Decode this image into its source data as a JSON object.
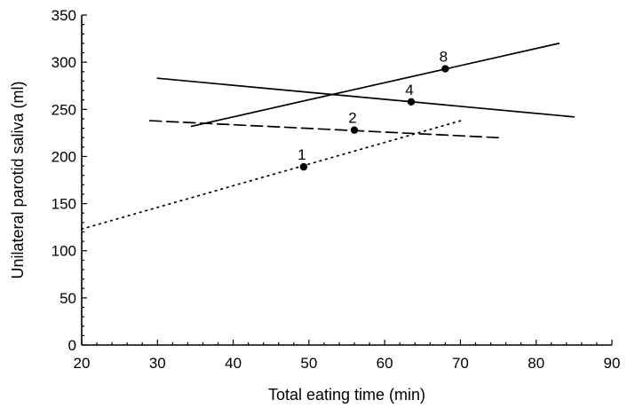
{
  "chart_data": {
    "type": "line",
    "title": "",
    "xlabel": "Total eating time (min)",
    "ylabel": "Unilateral parotid saliva (ml)",
    "xlim": [
      20,
      90
    ],
    "ylim": [
      0,
      350
    ],
    "x_ticks": [
      20,
      30,
      40,
      50,
      60,
      70,
      80,
      90
    ],
    "y_ticks": [
      0,
      50,
      100,
      150,
      200,
      250,
      300,
      350
    ],
    "grid": false,
    "legend": "none",
    "series": [
      {
        "label": "1",
        "line_style": "dotted",
        "line": [
          [
            20,
            123
          ],
          [
            70.5,
            239
          ]
        ],
        "point": [
          49.3,
          189
        ]
      },
      {
        "label": "2",
        "line_style": "dashed",
        "line": [
          [
            29,
            238
          ],
          [
            75,
            220
          ]
        ],
        "point": [
          56,
          228
        ]
      },
      {
        "label": "4",
        "line_style": "solid",
        "line": [
          [
            30,
            283
          ],
          [
            85,
            242
          ]
        ],
        "point": [
          63.5,
          258
        ]
      },
      {
        "label": "8",
        "line_style": "solid",
        "line": [
          [
            34.5,
            232
          ],
          [
            83,
            320
          ]
        ],
        "point": [
          68,
          293
        ]
      }
    ]
  }
}
